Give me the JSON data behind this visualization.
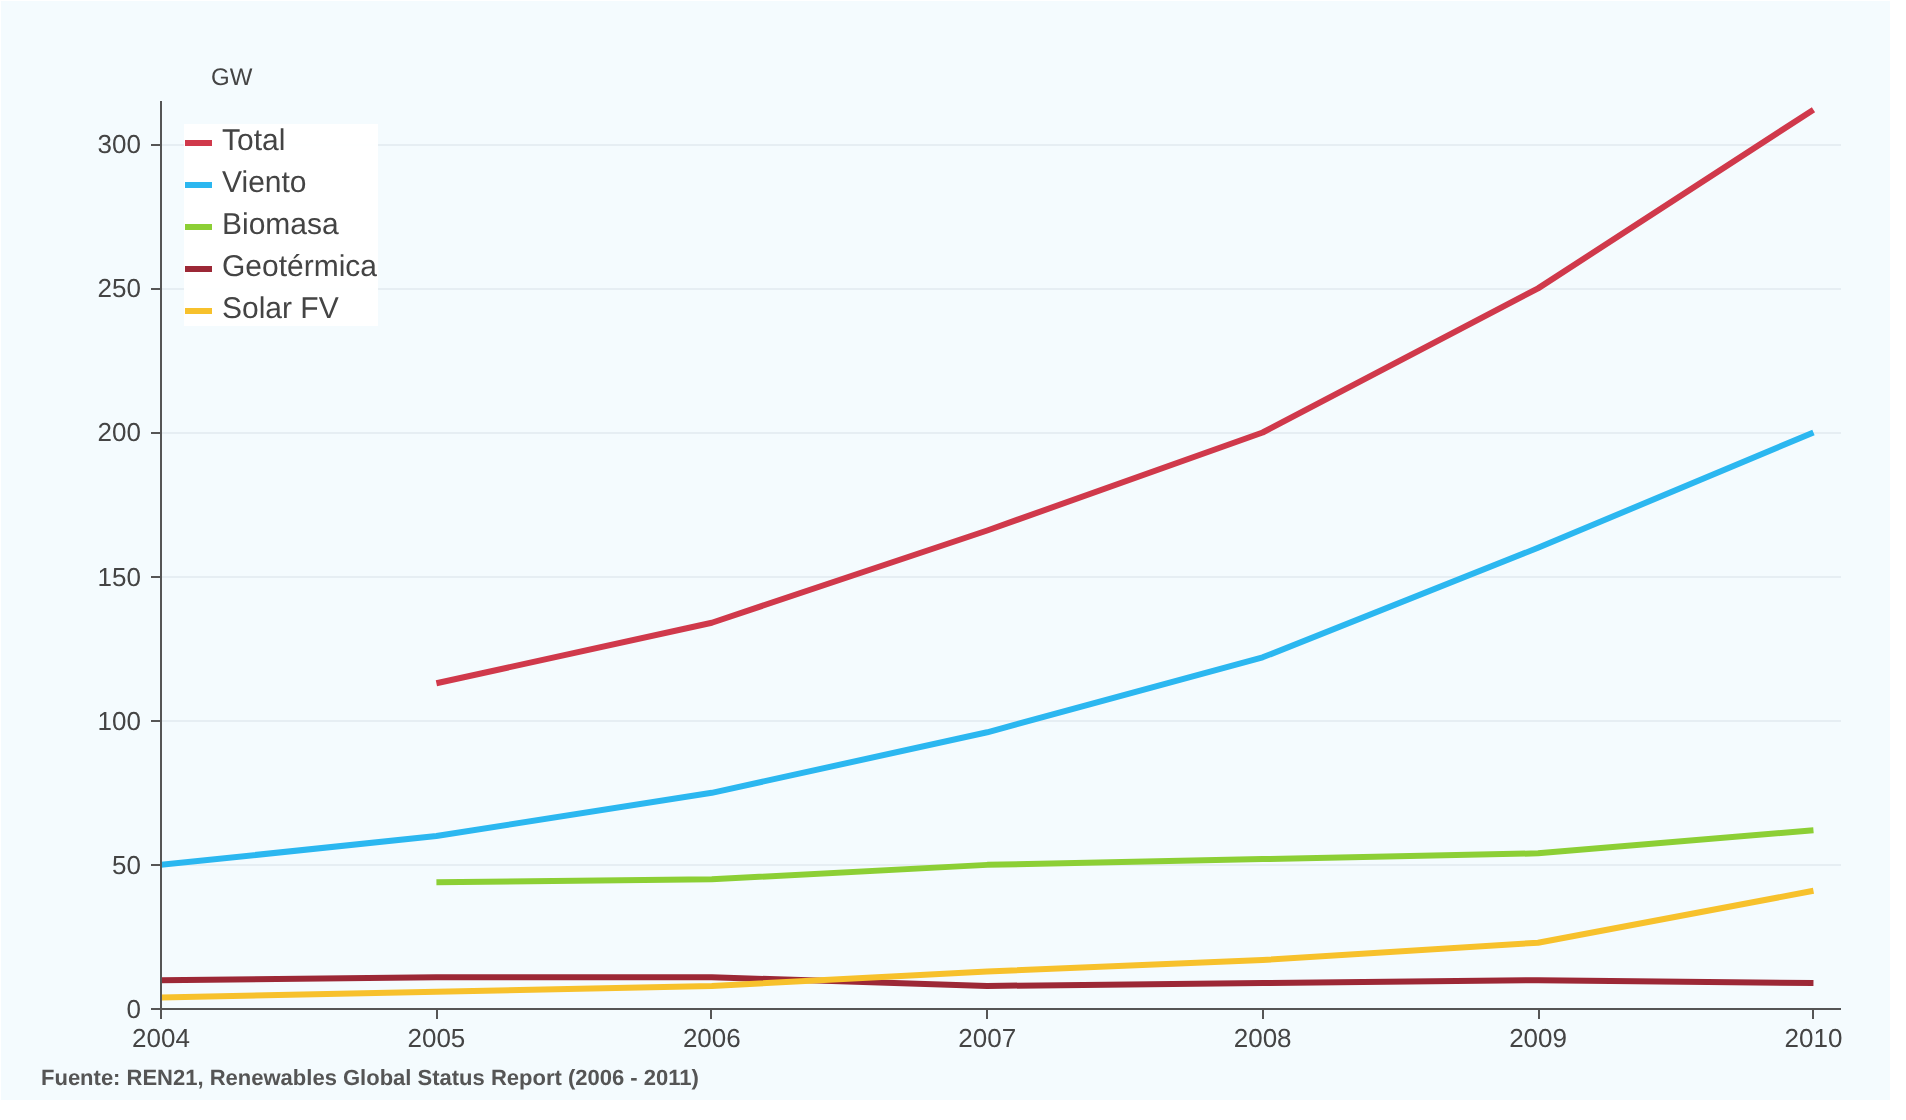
{
  "chart_data": {
    "type": "line",
    "ylabel": "GW",
    "x": [
      2004,
      2005,
      2006,
      2007,
      2008,
      2009,
      2010
    ],
    "series": [
      {
        "name": "Total",
        "color": "#d0394b",
        "values": [
          null,
          113,
          134,
          166,
          200,
          250,
          312
        ]
      },
      {
        "name": "Viento",
        "color": "#2bb7f0",
        "values": [
          50,
          60,
          75,
          96,
          122,
          160,
          200
        ]
      },
      {
        "name": "Biomasa",
        "color": "#8ccf35",
        "values": [
          null,
          44,
          45,
          50,
          52,
          54,
          62
        ]
      },
      {
        "name": "Geotérmica",
        "color": "#9c2836",
        "values": [
          10,
          11,
          11,
          8,
          9,
          10,
          9
        ]
      },
      {
        "name": "Solar FV",
        "color": "#f7c12c",
        "values": [
          4,
          6,
          8,
          13,
          17,
          23,
          41
        ]
      }
    ],
    "xlim": [
      2004,
      2010.1
    ],
    "ylim": [
      0,
      315
    ],
    "xticks": [
      2004,
      2005,
      2006,
      2007,
      2008,
      2009,
      2010
    ],
    "yticks": [
      0,
      50,
      100,
      150,
      200,
      250,
      300
    ],
    "grid": "y",
    "legend": "top left",
    "marker": "none",
    "line_style": "solid",
    "annotations": [
      "Fuente: REN21, Renewables Global Status Report (2006 - 2011)"
    ]
  }
}
